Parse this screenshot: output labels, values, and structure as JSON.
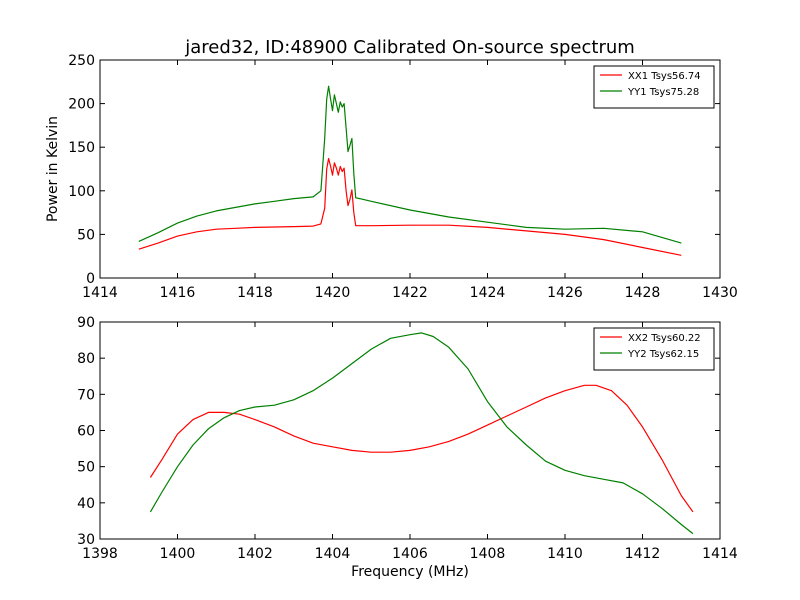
{
  "figure": {
    "title": "jared32, ID:48900 Calibrated On-source spectrum"
  },
  "chart_data": [
    {
      "type": "line",
      "ylabel": "Power in Kelvin",
      "xlabel": "",
      "xlim": [
        1414,
        1430
      ],
      "ylim": [
        0,
        250
      ],
      "xticks": [
        "1414",
        "1416",
        "1418",
        "1420",
        "1422",
        "1424",
        "1426",
        "1428",
        "1430"
      ],
      "yticks": [
        "0",
        "50",
        "100",
        "150",
        "200",
        "250"
      ],
      "legend_position": "top-right",
      "series": [
        {
          "name": "XX1 Tsys56.74",
          "color": "#ff0000",
          "x": [
            1415.0,
            1415.5,
            1416.0,
            1416.5,
            1417.0,
            1417.5,
            1418.0,
            1418.5,
            1419.0,
            1419.5,
            1419.7,
            1419.8,
            1419.85,
            1419.9,
            1419.95,
            1420.0,
            1420.05,
            1420.1,
            1420.15,
            1420.2,
            1420.25,
            1420.3,
            1420.35,
            1420.4,
            1420.45,
            1420.5,
            1420.55,
            1420.6,
            1420.7,
            1421.0,
            1422.0,
            1423.0,
            1424.0,
            1425.0,
            1426.0,
            1427.0,
            1428.0,
            1429.0
          ],
          "y": [
            33,
            40,
            48,
            53,
            56,
            57,
            58,
            58.5,
            59,
            59.5,
            62,
            80,
            125,
            137,
            128,
            118,
            132,
            126,
            118,
            128,
            122,
            126,
            100,
            83,
            90,
            101,
            75,
            60,
            60,
            60,
            60.5,
            60.5,
            58,
            54,
            50,
            44,
            35,
            26
          ]
        },
        {
          "name": "YY1 Tsys75.28",
          "color": "#008000",
          "x": [
            1415.0,
            1415.5,
            1416.0,
            1416.5,
            1417.0,
            1417.5,
            1418.0,
            1418.5,
            1419.0,
            1419.5,
            1419.7,
            1419.8,
            1419.85,
            1419.9,
            1419.95,
            1420.0,
            1420.05,
            1420.1,
            1420.15,
            1420.2,
            1420.25,
            1420.3,
            1420.35,
            1420.4,
            1420.45,
            1420.5,
            1420.55,
            1420.6,
            1420.7,
            1421.0,
            1422.0,
            1423.0,
            1424.0,
            1425.0,
            1426.0,
            1427.0,
            1428.0,
            1429.0
          ],
          "y": [
            42,
            52,
            63,
            71,
            77,
            81,
            85,
            88,
            91,
            93,
            100,
            160,
            205,
            220,
            205,
            192,
            210,
            200,
            190,
            202,
            196,
            200,
            172,
            145,
            152,
            160,
            120,
            92,
            91,
            88,
            78,
            70,
            64,
            58,
            56,
            57,
            53,
            40
          ]
        }
      ]
    },
    {
      "type": "line",
      "ylabel": "",
      "xlabel": "Frequency (MHz)",
      "xlim": [
        1398,
        1414
      ],
      "ylim": [
        30,
        90
      ],
      "xticks": [
        "1398",
        "1400",
        "1402",
        "1404",
        "1406",
        "1408",
        "1410",
        "1412",
        "1414"
      ],
      "yticks": [
        "30",
        "40",
        "50",
        "60",
        "70",
        "80",
        "90"
      ],
      "legend_position": "top-right",
      "series": [
        {
          "name": "XX2 Tsys60.22",
          "color": "#ff0000",
          "x": [
            1399.3,
            1399.6,
            1400.0,
            1400.4,
            1400.8,
            1401.2,
            1401.6,
            1402.0,
            1402.5,
            1403.0,
            1403.5,
            1404.0,
            1404.5,
            1405.0,
            1405.5,
            1406.0,
            1406.5,
            1407.0,
            1407.5,
            1408.0,
            1408.5,
            1409.0,
            1409.5,
            1410.0,
            1410.5,
            1410.8,
            1411.2,
            1411.6,
            1412.0,
            1412.5,
            1413.0,
            1413.3
          ],
          "y": [
            47,
            52,
            59,
            63,
            65,
            65,
            64.5,
            63,
            61,
            58.5,
            56.5,
            55.5,
            54.5,
            54,
            54,
            54.5,
            55.5,
            57,
            59,
            61.5,
            64,
            66.5,
            69,
            71,
            72.5,
            72.5,
            71,
            67,
            61,
            52,
            42,
            37.5
          ]
        },
        {
          "name": "YY2 Tsys62.15",
          "color": "#008000",
          "x": [
            1399.3,
            1399.6,
            1400.0,
            1400.4,
            1400.8,
            1401.2,
            1401.6,
            1402.0,
            1402.5,
            1403.0,
            1403.5,
            1404.0,
            1404.5,
            1405.0,
            1405.5,
            1406.0,
            1406.3,
            1406.6,
            1407.0,
            1407.5,
            1408.0,
            1408.5,
            1409.0,
            1409.5,
            1410.0,
            1410.5,
            1411.0,
            1411.5,
            1412.0,
            1412.5,
            1413.0,
            1413.3
          ],
          "y": [
            37.5,
            43,
            50,
            56,
            60.5,
            63.5,
            65.5,
            66.5,
            67,
            68.5,
            71,
            74.5,
            78.5,
            82.5,
            85.5,
            86.5,
            87,
            86,
            83,
            77,
            68,
            61,
            56,
            51.5,
            49,
            47.5,
            46.5,
            45.5,
            42.5,
            38.5,
            34,
            31.5
          ]
        }
      ]
    }
  ]
}
